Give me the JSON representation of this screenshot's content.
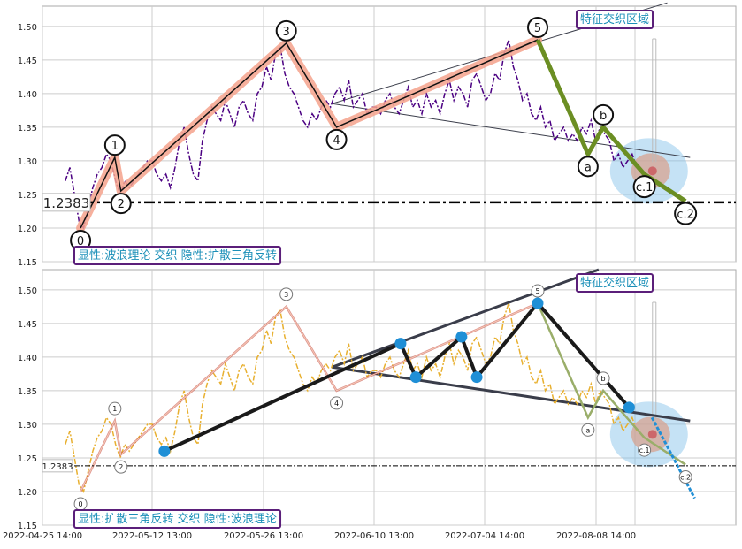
{
  "colors": {
    "grid": "#cccccc",
    "frame": "#aaaaaa",
    "price_top": "#4b0082",
    "price_bottom": "#e8b030",
    "wave_band": "#f4a28c",
    "wave_line": "#111111",
    "corrective": "#6b8e23",
    "corrective_bottom": "#9aae6a",
    "triangle_line": "#3a3d4a",
    "triangle_points": "#1f8fd6",
    "support": "#000000",
    "badge_border": "#5b1f7a",
    "badge_text": "#1b8fb8",
    "zone_fill": "#7fbfe8",
    "zone_core": "#d9a08a",
    "arrow_down": "#1f8fd6"
  },
  "x_ticks": [
    "2022-04-25 14:00",
    "2022-05-12 13:00",
    "2022-05-26 13:00",
    "2022-06-10 13:00",
    "2022-07-04 14:00",
    "2022-08-08 14:00"
  ],
  "chart_data": [
    {
      "type": "line",
      "panel": "top",
      "title": "",
      "xlabel": "",
      "ylabel": "",
      "ylim": [
        1.15,
        1.53
      ],
      "y_ticks": [
        "1.50",
        "1.45",
        "1.40",
        "1.35",
        "1.30",
        "1.25",
        "1.20",
        "1.15"
      ],
      "grid": true,
      "support_level": 1.2383,
      "support_label": "1.2383",
      "badge_top_right": "特征交织区域",
      "badge_bottom_left": "显性:波浪理论 交织 隐性:扩散三角反转",
      "wave_labels": [
        {
          "label": "0",
          "x": 1.0,
          "y": 1.2
        },
        {
          "label": "1",
          "x": 3.25,
          "y": 1.305
        },
        {
          "label": "2",
          "x": 3.65,
          "y": 1.255
        },
        {
          "label": "3",
          "x": 14.5,
          "y": 1.475
        },
        {
          "label": "4",
          "x": 17.8,
          "y": 1.35
        },
        {
          "label": "5",
          "x": 31.0,
          "y": 1.48
        },
        {
          "label": "a",
          "x": 34.3,
          "y": 1.31
        },
        {
          "label": "b",
          "x": 35.3,
          "y": 1.35
        },
        {
          "label": "c.1",
          "x": 38.0,
          "y": 1.28
        },
        {
          "label": "c.2",
          "x": 40.7,
          "y": 1.24
        }
      ],
      "price_series": {
        "name": "",
        "x": [
          0,
          0.3,
          0.6,
          0.9,
          1.2,
          1.5,
          1.8,
          2.1,
          2.4,
          2.7,
          3.0,
          3.3,
          3.6,
          3.9,
          4.2,
          4.5,
          4.8,
          5.1,
          5.4,
          5.7,
          6.0,
          6.3,
          6.6,
          6.9,
          7.2,
          7.5,
          7.8,
          8.1,
          8.4,
          8.7,
          9.0,
          9.3,
          9.6,
          9.9,
          10.2,
          10.5,
          10.8,
          11.1,
          11.4,
          11.7,
          12.0,
          12.3,
          12.6,
          12.9,
          13.2,
          13.5,
          13.8,
          14.1,
          14.4,
          14.7,
          15.0,
          15.3,
          15.6,
          15.9,
          16.2,
          16.5,
          16.8,
          17.1,
          17.4,
          17.7,
          18.0,
          18.3,
          18.6,
          18.9,
          19.2,
          19.5,
          19.8,
          20.1,
          20.4,
          20.7,
          21.0,
          21.3,
          21.6,
          21.9,
          22.2,
          22.5,
          22.8,
          23.1,
          23.4,
          23.7,
          24.0,
          24.3,
          24.6,
          24.9,
          25.2,
          25.5,
          25.8,
          26.1,
          26.4,
          26.7,
          27.0,
          27.3,
          27.6,
          27.9,
          28.2,
          28.5,
          28.8,
          29.1,
          29.4,
          29.7,
          30.0,
          30.3,
          30.6,
          30.9,
          31.2,
          31.5,
          31.8,
          32.1,
          32.4,
          32.7,
          33.0,
          33.3,
          33.6,
          33.9,
          34.2,
          34.5,
          34.8,
          35.1,
          35.4,
          35.7,
          36.0,
          36.3,
          36.6,
          36.9,
          37.2,
          37.5
        ],
        "y": [
          1.27,
          1.29,
          1.25,
          1.21,
          1.2,
          1.23,
          1.26,
          1.28,
          1.29,
          1.31,
          1.3,
          1.27,
          1.25,
          1.27,
          1.26,
          1.27,
          1.28,
          1.29,
          1.3,
          1.3,
          1.28,
          1.27,
          1.28,
          1.26,
          1.29,
          1.33,
          1.35,
          1.31,
          1.28,
          1.27,
          1.33,
          1.36,
          1.38,
          1.37,
          1.36,
          1.39,
          1.37,
          1.35,
          1.38,
          1.39,
          1.37,
          1.36,
          1.4,
          1.41,
          1.44,
          1.42,
          1.46,
          1.47,
          1.43,
          1.41,
          1.4,
          1.38,
          1.36,
          1.35,
          1.37,
          1.36,
          1.38,
          1.39,
          1.38,
          1.4,
          1.41,
          1.39,
          1.42,
          1.38,
          1.39,
          1.4,
          1.37,
          1.38,
          1.38,
          1.37,
          1.39,
          1.4,
          1.38,
          1.37,
          1.39,
          1.41,
          1.38,
          1.39,
          1.37,
          1.4,
          1.38,
          1.39,
          1.37,
          1.4,
          1.42,
          1.39,
          1.41,
          1.4,
          1.38,
          1.42,
          1.43,
          1.41,
          1.39,
          1.4,
          1.43,
          1.42,
          1.46,
          1.48,
          1.44,
          1.42,
          1.39,
          1.4,
          1.37,
          1.36,
          1.38,
          1.35,
          1.36,
          1.33,
          1.34,
          1.35,
          1.33,
          1.34,
          1.33,
          1.35,
          1.34,
          1.36,
          1.33,
          1.35,
          1.34,
          1.33,
          1.3,
          1.31,
          1.29,
          1.3,
          1.31,
          1.29
        ]
      },
      "wave_path": [
        [
          1.0,
          1.2
        ],
        [
          3.25,
          1.305
        ],
        [
          3.65,
          1.255
        ],
        [
          14.5,
          1.475
        ],
        [
          17.8,
          1.35
        ],
        [
          31.0,
          1.48
        ]
      ],
      "corrective_path": [
        [
          31.0,
          1.48
        ],
        [
          34.3,
          1.31
        ],
        [
          35.3,
          1.35
        ],
        [
          38.0,
          1.28
        ],
        [
          40.7,
          1.24
        ]
      ],
      "triangle_upper": [
        [
          17.5,
          1.385
        ],
        [
          39.5,
          1.535
        ]
      ],
      "triangle_lower": [
        [
          17.5,
          1.385
        ],
        [
          41.0,
          1.305
        ]
      ]
    },
    {
      "type": "line",
      "panel": "bottom",
      "title": "",
      "xlabel": "",
      "ylabel": "",
      "ylim": [
        1.15,
        1.53
      ],
      "y_ticks": [
        "1.50",
        "1.45",
        "1.40",
        "1.35",
        "1.30",
        "1.25",
        "1.20",
        "1.15"
      ],
      "grid": true,
      "support_level": 1.2383,
      "support_label": "1.2383",
      "badge_top_right": "特征交织区域",
      "badge_bottom_left": "显性:扩散三角反转 交织 隐性:波浪理论",
      "wave_labels": [
        {
          "label": "0",
          "x": 1.0,
          "y": 1.2
        },
        {
          "label": "1",
          "x": 3.25,
          "y": 1.305
        },
        {
          "label": "2",
          "x": 3.65,
          "y": 1.255
        },
        {
          "label": "3",
          "x": 14.5,
          "y": 1.475
        },
        {
          "label": "4",
          "x": 17.8,
          "y": 1.35
        },
        {
          "label": "5",
          "x": 31.0,
          "y": 1.48
        },
        {
          "label": "a",
          "x": 34.3,
          "y": 1.31
        },
        {
          "label": "b",
          "x": 35.3,
          "y": 1.35
        },
        {
          "label": "c.1",
          "x": 38.0,
          "y": 1.28
        },
        {
          "label": "c.2",
          "x": 40.7,
          "y": 1.24
        }
      ],
      "price_series_ref": "top",
      "triangle_points": [
        [
          6.5,
          1.26
        ],
        [
          22.0,
          1.42
        ],
        [
          23.0,
          1.37
        ],
        [
          26.0,
          1.43
        ],
        [
          27.0,
          1.37
        ],
        [
          31.0,
          1.48
        ],
        [
          37.0,
          1.325
        ]
      ],
      "triangle_upper": [
        [
          17.5,
          1.385
        ],
        [
          35.0,
          1.53
        ]
      ],
      "triangle_lower": [
        [
          17.5,
          1.385
        ],
        [
          41.0,
          1.305
        ]
      ],
      "down_arrow": [
        [
          38.5,
          1.31
        ],
        [
          41.3,
          1.19
        ]
      ]
    }
  ]
}
